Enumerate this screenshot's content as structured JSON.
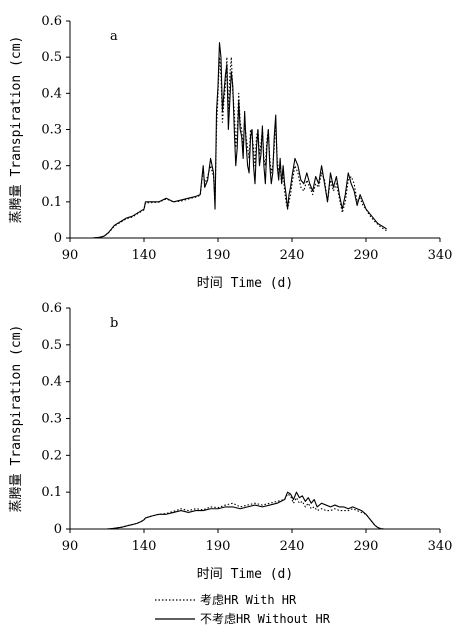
{
  "legend": {
    "with_hr": "考虑HR With HR",
    "without_hr": "不考虑HR Without HR"
  },
  "chart_data": [
    {
      "type": "line",
      "panel_label": "a",
      "xlabel": "时间 Time (d)",
      "ylabel": "蒸腾量 Transpiration (cm)",
      "xlim": [
        90,
        340
      ],
      "ylim": [
        0,
        0.6
      ],
      "xticks": [
        90,
        140,
        190,
        240,
        290,
        340
      ],
      "yticks": [
        0,
        0.1,
        0.2,
        0.3,
        0.4,
        0.5,
        0.6
      ],
      "series": [
        {
          "name": "不考虑HR Without HR",
          "style": "solid",
          "x": [
            100,
            105,
            110,
            113,
            116,
            120,
            124,
            128,
            132,
            136,
            140,
            141,
            145,
            150,
            155,
            160,
            165,
            170,
            175,
            178,
            180,
            181,
            183,
            185,
            187,
            188,
            189,
            190,
            191,
            192,
            193,
            194,
            195,
            196,
            197,
            198,
            199,
            200,
            201,
            202,
            203,
            204,
            205,
            206,
            207,
            208,
            209,
            210,
            211,
            212,
            213,
            214,
            215,
            216,
            217,
            218,
            219,
            220,
            221,
            222,
            223,
            224,
            225,
            226,
            227,
            228,
            229,
            230,
            231,
            232,
            233,
            234,
            235,
            236,
            237,
            238,
            239,
            240,
            242,
            244,
            246,
            248,
            250,
            252,
            254,
            256,
            258,
            260,
            262,
            264,
            266,
            268,
            270,
            272,
            274,
            276,
            278,
            280,
            282,
            284,
            286,
            288,
            290,
            292,
            294,
            296,
            298,
            300,
            302,
            304
          ],
          "y": [
            0,
            0,
            0.002,
            0.005,
            0.015,
            0.035,
            0.045,
            0.055,
            0.06,
            0.07,
            0.08,
            0.1,
            0.1,
            0.1,
            0.11,
            0.1,
            0.105,
            0.11,
            0.115,
            0.12,
            0.2,
            0.14,
            0.16,
            0.22,
            0.18,
            0.08,
            0.35,
            0.42,
            0.54,
            0.5,
            0.35,
            0.4,
            0.45,
            0.48,
            0.3,
            0.38,
            0.46,
            0.42,
            0.3,
            0.2,
            0.25,
            0.38,
            0.3,
            0.28,
            0.22,
            0.35,
            0.26,
            0.2,
            0.18,
            0.28,
            0.3,
            0.2,
            0.15,
            0.25,
            0.3,
            0.2,
            0.23,
            0.31,
            0.2,
            0.15,
            0.25,
            0.3,
            0.2,
            0.15,
            0.18,
            0.28,
            0.34,
            0.2,
            0.16,
            0.22,
            0.15,
            0.2,
            0.15,
            0.12,
            0.08,
            0.12,
            0.14,
            0.17,
            0.22,
            0.2,
            0.16,
            0.15,
            0.18,
            0.15,
            0.13,
            0.17,
            0.15,
            0.2,
            0.15,
            0.1,
            0.18,
            0.14,
            0.17,
            0.12,
            0.08,
            0.12,
            0.18,
            0.15,
            0.13,
            0.09,
            0.12,
            0.1,
            0.08,
            0.07,
            0.06,
            0.05,
            0.04,
            0.035,
            0.03,
            0.025
          ]
        },
        {
          "name": "考虑HR With HR",
          "style": "dotted",
          "x": [
            100,
            105,
            110,
            113,
            116,
            120,
            124,
            128,
            132,
            136,
            140,
            141,
            145,
            150,
            155,
            160,
            165,
            170,
            175,
            178,
            180,
            181,
            183,
            185,
            187,
            188,
            189,
            190,
            191,
            192,
            193,
            194,
            195,
            196,
            197,
            198,
            199,
            200,
            201,
            202,
            203,
            204,
            205,
            206,
            207,
            208,
            209,
            210,
            211,
            212,
            213,
            214,
            215,
            216,
            217,
            218,
            219,
            220,
            221,
            222,
            223,
            224,
            225,
            226,
            227,
            228,
            229,
            230,
            231,
            232,
            233,
            234,
            235,
            236,
            237,
            238,
            239,
            240,
            242,
            244,
            246,
            248,
            250,
            252,
            254,
            256,
            258,
            260,
            262,
            264,
            266,
            268,
            270,
            272,
            274,
            276,
            278,
            280,
            282,
            284,
            286,
            288,
            290,
            292,
            294,
            296,
            298,
            300,
            302,
            304
          ],
          "y": [
            0,
            0,
            0.002,
            0.005,
            0.014,
            0.033,
            0.043,
            0.053,
            0.058,
            0.068,
            0.078,
            0.097,
            0.098,
            0.099,
            0.108,
            0.1,
            0.102,
            0.108,
            0.113,
            0.118,
            0.19,
            0.15,
            0.17,
            0.2,
            0.17,
            0.1,
            0.3,
            0.4,
            0.5,
            0.45,
            0.32,
            0.38,
            0.42,
            0.5,
            0.35,
            0.45,
            0.5,
            0.4,
            0.35,
            0.25,
            0.3,
            0.4,
            0.32,
            0.3,
            0.25,
            0.32,
            0.28,
            0.25,
            0.22,
            0.3,
            0.28,
            0.25,
            0.2,
            0.28,
            0.3,
            0.23,
            0.26,
            0.3,
            0.22,
            0.2,
            0.27,
            0.3,
            0.22,
            0.18,
            0.2,
            0.25,
            0.32,
            0.22,
            0.18,
            0.2,
            0.15,
            0.18,
            0.13,
            0.1,
            0.08,
            0.1,
            0.12,
            0.15,
            0.2,
            0.18,
            0.14,
            0.13,
            0.16,
            0.14,
            0.12,
            0.15,
            0.14,
            0.18,
            0.16,
            0.1,
            0.16,
            0.13,
            0.15,
            0.11,
            0.07,
            0.1,
            0.16,
            0.17,
            0.15,
            0.1,
            0.11,
            0.09,
            0.08,
            0.065,
            0.055,
            0.045,
            0.038,
            0.03,
            0.025,
            0.02
          ]
        }
      ]
    },
    {
      "type": "line",
      "panel_label": "b",
      "xlabel": "时间 Time (d)",
      "ylabel": "蒸腾量 Transpiration (cm)",
      "xlim": [
        90,
        340
      ],
      "ylim": [
        0,
        0.6
      ],
      "xticks": [
        90,
        140,
        190,
        240,
        290,
        340
      ],
      "yticks": [
        0,
        0.1,
        0.2,
        0.3,
        0.4,
        0.5,
        0.6
      ],
      "series": [
        {
          "name": "不考虑HR Without HR",
          "style": "solid",
          "x": [
            115,
            120,
            125,
            130,
            135,
            138,
            140,
            141,
            145,
            150,
            155,
            160,
            165,
            170,
            175,
            180,
            185,
            190,
            195,
            200,
            205,
            210,
            215,
            220,
            225,
            230,
            235,
            237,
            239,
            241,
            243,
            245,
            247,
            249,
            251,
            253,
            255,
            257,
            260,
            263,
            266,
            269,
            272,
            275,
            278,
            281,
            284,
            287,
            290,
            292,
            294,
            296,
            298,
            300,
            302
          ],
          "y": [
            0,
            0.002,
            0.005,
            0.01,
            0.015,
            0.02,
            0.025,
            0.03,
            0.035,
            0.04,
            0.04,
            0.045,
            0.05,
            0.045,
            0.05,
            0.05,
            0.055,
            0.055,
            0.06,
            0.06,
            0.055,
            0.06,
            0.065,
            0.06,
            0.065,
            0.07,
            0.08,
            0.1,
            0.095,
            0.08,
            0.1,
            0.085,
            0.09,
            0.075,
            0.085,
            0.07,
            0.08,
            0.06,
            0.07,
            0.065,
            0.06,
            0.065,
            0.06,
            0.06,
            0.055,
            0.06,
            0.055,
            0.05,
            0.04,
            0.03,
            0.02,
            0.01,
            0.004,
            0.001,
            0
          ]
        },
        {
          "name": "考虑HR With HR",
          "style": "dotted",
          "x": [
            115,
            120,
            125,
            130,
            135,
            138,
            140,
            141,
            145,
            150,
            155,
            160,
            165,
            170,
            175,
            180,
            185,
            190,
            195,
            200,
            205,
            210,
            215,
            220,
            225,
            230,
            235,
            237,
            239,
            241,
            243,
            245,
            247,
            249,
            251,
            253,
            255,
            257,
            260,
            263,
            266,
            269,
            272,
            275,
            278,
            281,
            284,
            287,
            290,
            292,
            294,
            296,
            298,
            300,
            302
          ],
          "y": [
            0,
            0.002,
            0.005,
            0.01,
            0.015,
            0.02,
            0.025,
            0.03,
            0.035,
            0.04,
            0.042,
            0.048,
            0.055,
            0.05,
            0.055,
            0.052,
            0.06,
            0.058,
            0.065,
            0.07,
            0.06,
            0.065,
            0.07,
            0.065,
            0.07,
            0.075,
            0.08,
            0.095,
            0.09,
            0.07,
            0.085,
            0.07,
            0.075,
            0.06,
            0.07,
            0.055,
            0.06,
            0.05,
            0.055,
            0.05,
            0.05,
            0.055,
            0.05,
            0.05,
            0.05,
            0.055,
            0.05,
            0.045,
            0.04,
            0.03,
            0.02,
            0.01,
            0.004,
            0.001,
            0
          ]
        }
      ]
    }
  ]
}
